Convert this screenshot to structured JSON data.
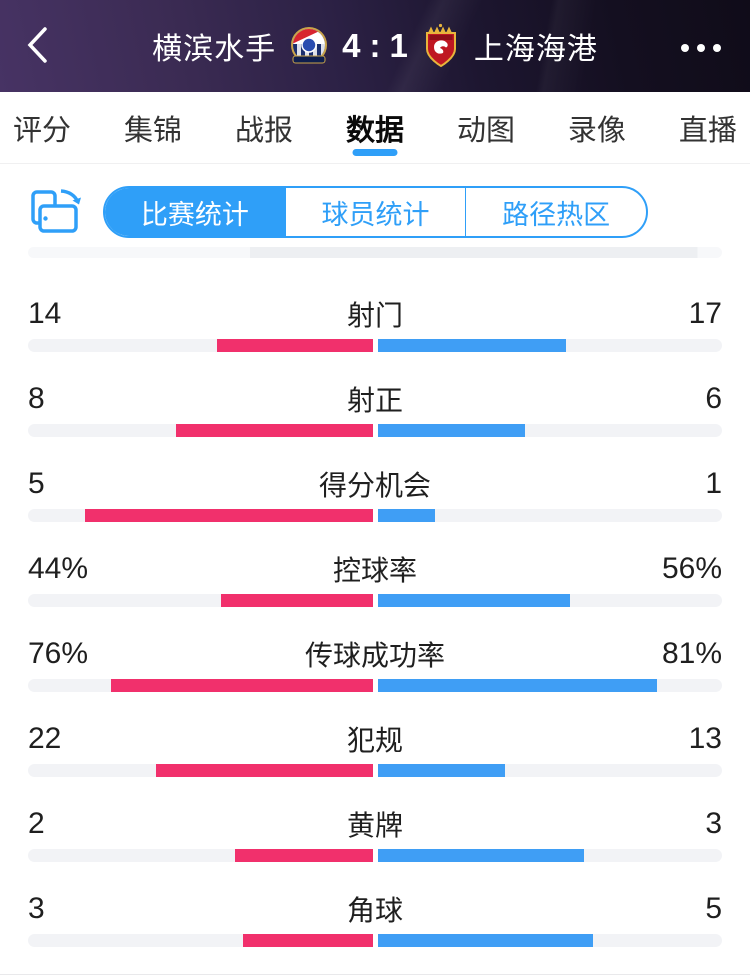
{
  "header": {
    "home_team": "横滨水手",
    "away_team": "上海海港",
    "score_home": "4",
    "score_sep": ":",
    "score_away": "1"
  },
  "tabs": [
    {
      "label": "评分",
      "active": false
    },
    {
      "label": "集锦",
      "active": false
    },
    {
      "label": "战报",
      "active": false
    },
    {
      "label": "数据",
      "active": true
    },
    {
      "label": "动图",
      "active": false
    },
    {
      "label": "录像",
      "active": false
    },
    {
      "label": "直播",
      "active": false
    }
  ],
  "subtabs": [
    {
      "label": "比赛统计",
      "active": true
    },
    {
      "label": "球员统计",
      "active": false
    },
    {
      "label": "路径热区",
      "active": false
    }
  ],
  "stats_rows": [
    {
      "label": "射门",
      "home_display": "14",
      "away_display": "17",
      "home_value": 14,
      "away_value": 17,
      "type": "count"
    },
    {
      "label": "射正",
      "home_display": "8",
      "away_display": "6",
      "home_value": 8,
      "away_value": 6,
      "type": "count"
    },
    {
      "label": "得分机会",
      "home_display": "5",
      "away_display": "1",
      "home_value": 5,
      "away_value": 1,
      "type": "count"
    },
    {
      "label": "控球率",
      "home_display": "44%",
      "away_display": "56%",
      "home_value": 44,
      "away_value": 56,
      "type": "percent"
    },
    {
      "label": "传球成功率",
      "home_display": "76%",
      "away_display": "81%",
      "home_value": 76,
      "away_value": 81,
      "type": "percent"
    },
    {
      "label": "犯规",
      "home_display": "22",
      "away_display": "13",
      "home_value": 22,
      "away_value": 13,
      "type": "count"
    },
    {
      "label": "黄牌",
      "home_display": "2",
      "away_display": "3",
      "home_value": 2,
      "away_value": 3,
      "type": "count"
    },
    {
      "label": "角球",
      "home_display": "3",
      "away_display": "5",
      "home_value": 3,
      "away_value": 5,
      "type": "count"
    }
  ],
  "colors": {
    "home_bar": "#f1306c",
    "away_bar": "#3f9ef5",
    "accent_blue": "#2f9ff8",
    "track": "#f2f3f6"
  }
}
